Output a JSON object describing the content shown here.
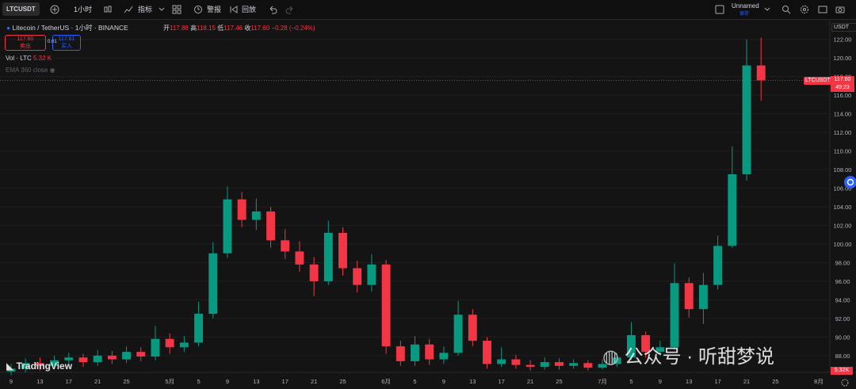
{
  "toolbar": {
    "symbol": "LTCUSDT",
    "interval": "1小时",
    "indicators": "指标",
    "alert": "警报",
    "replay": "回放",
    "layout_name": "Unnamed",
    "save": "保存"
  },
  "legend": {
    "title": "Litecoin / TetherUS · 1小时 · BINANCE",
    "open_label": "开",
    "open": "117.88",
    "high_label": "高",
    "high": "118.15",
    "low_label": "低",
    "low": "117.46",
    "close_label": "收",
    "close": "117.60",
    "change": "−0.28 (−0.24%)",
    "sell_price": "117.60",
    "sell": "卖出",
    "spread": "0.01",
    "buy_price": "117.61",
    "buy": "买入",
    "volume_name": "Vol · LTC",
    "volume": "5.32 K",
    "ema": "EMA 360 close"
  },
  "price_axis": {
    "currency": "USDT",
    "tag_symbol": "LTCUSDT",
    "tag_price": "117.60",
    "tag_countdown": "49:23",
    "volume_tag": "5.32K"
  },
  "watermark": {
    "brand": "TradingView",
    "wechat": "公众号 · 听甜梦说"
  },
  "chart_data": {
    "type": "candlestick",
    "up_color": "#089981",
    "down_color": "#f23645",
    "grid": true,
    "categories": [
      "9",
      null,
      "13",
      null,
      "17",
      null,
      "21",
      null,
      "25",
      null,
      null,
      "5月",
      null,
      "5",
      null,
      "9",
      null,
      "13",
      null,
      "17",
      null,
      "21",
      null,
      "25",
      null,
      null,
      "6月",
      null,
      "5",
      null,
      "9",
      null,
      "13",
      null,
      "17",
      null,
      "21",
      null,
      "25",
      null,
      null,
      "7月",
      null,
      "5",
      null,
      "9",
      null,
      "13",
      null,
      "17",
      null,
      "21",
      null,
      "25",
      null,
      null,
      "8月"
    ],
    "open": [
      86.3,
      86.6,
      87.2,
      86.9,
      87.5,
      87.8,
      87.3,
      88.0,
      87.6,
      88.4,
      87.9,
      89.8,
      88.9,
      89.4,
      92.5,
      99.0,
      104.8,
      102.6,
      103.5,
      100.4,
      99.2,
      97.8,
      96.0,
      101.2,
      97.4,
      95.6,
      97.8,
      89.0,
      87.4,
      89.2,
      87.6,
      88.3,
      92.4,
      89.6,
      87.1,
      87.6,
      87.0,
      86.8,
      87.3,
      86.9,
      87.2,
      86.7,
      87.1,
      87.8,
      90.2,
      88.4,
      88.9,
      95.8,
      93.0,
      95.6,
      99.8,
      107.5,
      119.2,
      null,
      null,
      null,
      null
    ],
    "high": [
      87.1,
      87.7,
      87.8,
      88.0,
      88.3,
      88.2,
      88.6,
      88.5,
      89.0,
      88.9,
      91.2,
      90.4,
      90.1,
      93.8,
      100.2,
      106.2,
      105.6,
      104.9,
      104.0,
      101.6,
      100.3,
      98.6,
      102.5,
      101.8,
      98.2,
      98.9,
      98.3,
      89.6,
      90.1,
      89.8,
      89.0,
      93.9,
      93.0,
      90.0,
      88.9,
      88.1,
      87.5,
      87.8,
      87.7,
      87.6,
      87.5,
      87.6,
      88.3,
      91.6,
      90.6,
      89.6,
      97.9,
      96.4,
      96.9,
      100.9,
      110.5,
      122.0,
      122.2,
      null,
      null,
      null,
      null
    ],
    "low": [
      85.9,
      86.2,
      86.4,
      86.5,
      87.1,
      86.8,
      86.9,
      87.1,
      87.2,
      87.4,
      87.5,
      88.2,
      88.4,
      89.0,
      92.0,
      98.5,
      101.8,
      101.5,
      99.6,
      98.4,
      97.0,
      94.4,
      95.6,
      96.6,
      94.8,
      94.9,
      88.2,
      86.9,
      86.9,
      87.0,
      87.1,
      88.0,
      89.0,
      86.6,
      86.8,
      86.6,
      86.4,
      86.5,
      86.5,
      86.6,
      86.4,
      86.5,
      86.8,
      87.5,
      87.8,
      88.0,
      88.6,
      92.1,
      91.4,
      95.1,
      99.6,
      106.8,
      115.4,
      null,
      null,
      null,
      null
    ],
    "close": [
      86.6,
      87.2,
      86.9,
      87.5,
      87.8,
      87.3,
      88.0,
      87.6,
      88.4,
      87.9,
      89.8,
      88.9,
      89.4,
      92.5,
      99.0,
      104.8,
      102.6,
      103.5,
      100.4,
      99.2,
      97.8,
      96.0,
      101.2,
      97.4,
      95.6,
      97.8,
      89.0,
      87.4,
      89.2,
      87.6,
      88.3,
      92.4,
      89.6,
      87.1,
      87.6,
      87.0,
      86.8,
      87.3,
      86.9,
      87.2,
      86.7,
      87.1,
      87.8,
      90.2,
      88.4,
      88.9,
      95.8,
      93.0,
      95.6,
      99.8,
      107.5,
      119.2,
      117.6,
      null,
      null,
      null,
      null
    ],
    "ylim": [
      86.2,
      123
    ],
    "yticks": [
      {
        "value": 88,
        "label": "88.00"
      },
      {
        "value": 90,
        "label": "90.00"
      },
      {
        "value": 92,
        "label": "92.00"
      },
      {
        "value": 94,
        "label": "94.00"
      },
      {
        "value": 96,
        "label": "96.00"
      },
      {
        "value": 98,
        "label": "98.00"
      },
      {
        "value": 100,
        "label": "100.00"
      },
      {
        "value": 102,
        "label": "102.00"
      },
      {
        "value": 104,
        "label": "104.00"
      },
      {
        "value": 106,
        "label": "106.00"
      },
      {
        "value": 108,
        "label": "108.00"
      },
      {
        "value": 110,
        "label": "110.00"
      },
      {
        "value": 112,
        "label": "112.00"
      },
      {
        "value": 114,
        "label": "114.00"
      },
      {
        "value": 116,
        "label": "116.00"
      },
      {
        "value": 118,
        "label": "118.00"
      },
      {
        "value": 120,
        "label": "120.00"
      },
      {
        "value": 122,
        "label": "122.00"
      }
    ]
  }
}
